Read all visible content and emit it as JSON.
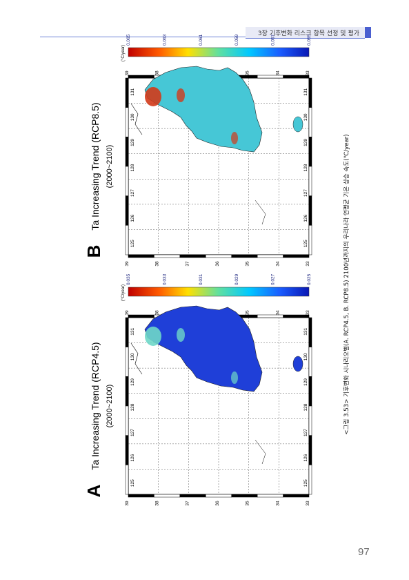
{
  "header": {
    "chapter_title": "3장 기후변화 리스크 항목 선정 및 평가"
  },
  "page_number": "97",
  "caption": "<그림 3.53> 기후변화 시나리오별(A. RCP4.5, B. RCP8.5) 2100년까지의 우리나라 연평균 기온 상승 속도(℃/year)",
  "panels": [
    {
      "letter": "A",
      "title": "Ta Increasing Trend (RCP4.5)",
      "subtitle": "(2000~2100)",
      "unit": "(°C/year)",
      "colorbar_ticks": [
        "0.035",
        "0.033",
        "0.031",
        "0.029",
        "0.027",
        "0.025"
      ],
      "lon_ticks": [
        "125",
        "126",
        "127",
        "128",
        "129",
        "130",
        "131"
      ],
      "lat_ticks": [
        "39",
        "38",
        "37",
        "36",
        "35",
        "34",
        "33"
      ],
      "colors": {
        "dominant": "#1f3fd8",
        "accent_high": "#6ed7c8"
      }
    },
    {
      "letter": "B",
      "title": "Ta Increasing Trend (RCP8.5)",
      "subtitle": "(2000~2100)",
      "unit": "(°C/year)",
      "colorbar_ticks": [
        "0.065",
        "0.063",
        "0.061",
        "0.059",
        "0.057",
        "0.055"
      ],
      "lon_ticks": [
        "125",
        "126",
        "127",
        "128",
        "129",
        "130",
        "131"
      ],
      "lat_ticks": [
        "39",
        "38",
        "37",
        "36",
        "35",
        "34",
        "33"
      ],
      "colors": {
        "dominant": "#46c7d6",
        "accent_high": "#d13a1a"
      }
    }
  ]
}
